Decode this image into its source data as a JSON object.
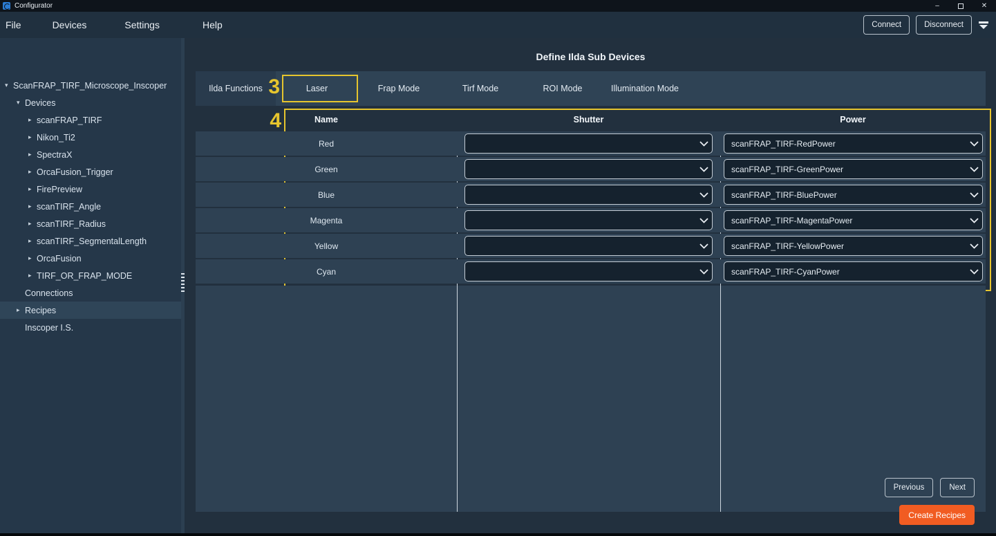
{
  "window": {
    "title": "Configurator"
  },
  "icons": {
    "minimize": "–",
    "close": "✕",
    "tree_expanded": "▾",
    "tree_collapsed": "▸"
  },
  "menubar": {
    "items": [
      "File",
      "Devices",
      "Settings",
      "Help"
    ],
    "connect_label": "Connect",
    "disconnect_label": "Disconnect"
  },
  "sidebar": {
    "items": [
      {
        "label": "ScanFRAP_TIRF_Microscope_Inscoper",
        "level": 0,
        "arrow": "expanded",
        "selected": false
      },
      {
        "label": "Devices",
        "level": 1,
        "arrow": "expanded",
        "selected": false
      },
      {
        "label": "scanFRAP_TIRF",
        "level": 2,
        "arrow": "collapsed",
        "selected": false
      },
      {
        "label": "Nikon_Ti2",
        "level": 2,
        "arrow": "collapsed",
        "selected": false
      },
      {
        "label": "SpectraX",
        "level": 2,
        "arrow": "collapsed",
        "selected": false
      },
      {
        "label": "OrcaFusion_Trigger",
        "level": 2,
        "arrow": "collapsed",
        "selected": false
      },
      {
        "label": "FirePreview",
        "level": 2,
        "arrow": "collapsed",
        "selected": false
      },
      {
        "label": "scanTIRF_Angle",
        "level": 2,
        "arrow": "collapsed",
        "selected": false
      },
      {
        "label": "scanTIRF_Radius",
        "level": 2,
        "arrow": "collapsed",
        "selected": false
      },
      {
        "label": "scanTIRF_SegmentalLength",
        "level": 2,
        "arrow": "collapsed",
        "selected": false
      },
      {
        "label": "OrcaFusion",
        "level": 2,
        "arrow": "collapsed",
        "selected": false
      },
      {
        "label": "TIRF_OR_FRAP_MODE",
        "level": 2,
        "arrow": "collapsed",
        "selected": false
      },
      {
        "label": "Connections",
        "level": 1,
        "arrow": "none",
        "selected": false
      },
      {
        "label": "Recipes",
        "level": 1,
        "arrow": "collapsed",
        "selected": true
      },
      {
        "label": "Inscoper I.S.",
        "level": 1,
        "arrow": "none",
        "selected": false
      }
    ]
  },
  "main": {
    "title": "Define Ilda Sub Devices",
    "tabs": [
      {
        "label": "Ilda Functions",
        "active": true,
        "highlighted": false
      },
      {
        "label": "Laser",
        "active": false,
        "highlighted": true
      },
      {
        "label": "Frap Mode",
        "active": false,
        "highlighted": false
      },
      {
        "label": "Tirf Mode",
        "active": false,
        "highlighted": false
      },
      {
        "label": "ROI Mode",
        "active": false,
        "highlighted": false
      },
      {
        "label": "Illumination Mode",
        "active": false,
        "highlighted": false
      }
    ],
    "annotations": {
      "step3": "3",
      "step4": "4"
    },
    "table": {
      "columns": [
        "Name",
        "Shutter",
        "Power"
      ],
      "rows": [
        {
          "name": "Red",
          "shutter": "",
          "power": "scanFRAP_TIRF-RedPower"
        },
        {
          "name": "Green",
          "shutter": "",
          "power": "scanFRAP_TIRF-GreenPower"
        },
        {
          "name": "Blue",
          "shutter": "",
          "power": "scanFRAP_TIRF-BluePower"
        },
        {
          "name": "Magenta",
          "shutter": "",
          "power": "scanFRAP_TIRF-MagentaPower"
        },
        {
          "name": "Yellow",
          "shutter": "",
          "power": "scanFRAP_TIRF-YellowPower"
        },
        {
          "name": "Cyan",
          "shutter": "",
          "power": "scanFRAP_TIRF-CyanPower"
        }
      ]
    },
    "footer": {
      "previous_label": "Previous",
      "next_label": "Next",
      "create_recipes_label": "Create Recipes"
    }
  },
  "colors": {
    "annotation_yellow": "#e6c52e",
    "accent_orange": "#f15c22",
    "band_blue": "#2e4153",
    "dropdown_dark": "#15222e"
  }
}
